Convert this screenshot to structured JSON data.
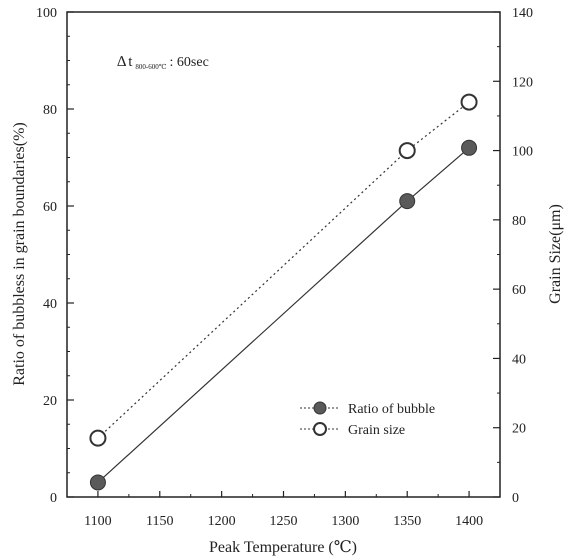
{
  "chart_data": {
    "type": "line",
    "x": [
      1100,
      1350,
      1400
    ],
    "xlim": [
      1075,
      1425
    ],
    "xticks": [
      1100,
      1150,
      1200,
      1250,
      1300,
      1350,
      1400
    ],
    "xlabel": "Peak Temperature (℃)",
    "y_left": {
      "label": "Ratio of bubbless in grain boundaries(%)",
      "lim": [
        0,
        100
      ],
      "ticks": [
        0,
        20,
        40,
        60,
        80,
        100
      ]
    },
    "y_right": {
      "label": "Grain Size(μm)",
      "lim": [
        0,
        140
      ],
      "ticks": [
        0,
        20,
        40,
        60,
        80,
        100,
        120,
        140
      ]
    },
    "series": [
      {
        "name": "Ratio of bubble",
        "axis": "left",
        "marker": "filled-circle",
        "line": "solid",
        "values": [
          3,
          61,
          72
        ]
      },
      {
        "name": "Grain size",
        "axis": "right",
        "marker": "open-circle",
        "line": "dotted",
        "values": [
          17,
          100,
          114
        ]
      }
    ],
    "annotation": {
      "delta": "∆",
      "t": "t",
      "subscript": "800-600℃",
      "value": ": 60sec"
    },
    "legend_placement": "lower-right",
    "grid": false
  }
}
